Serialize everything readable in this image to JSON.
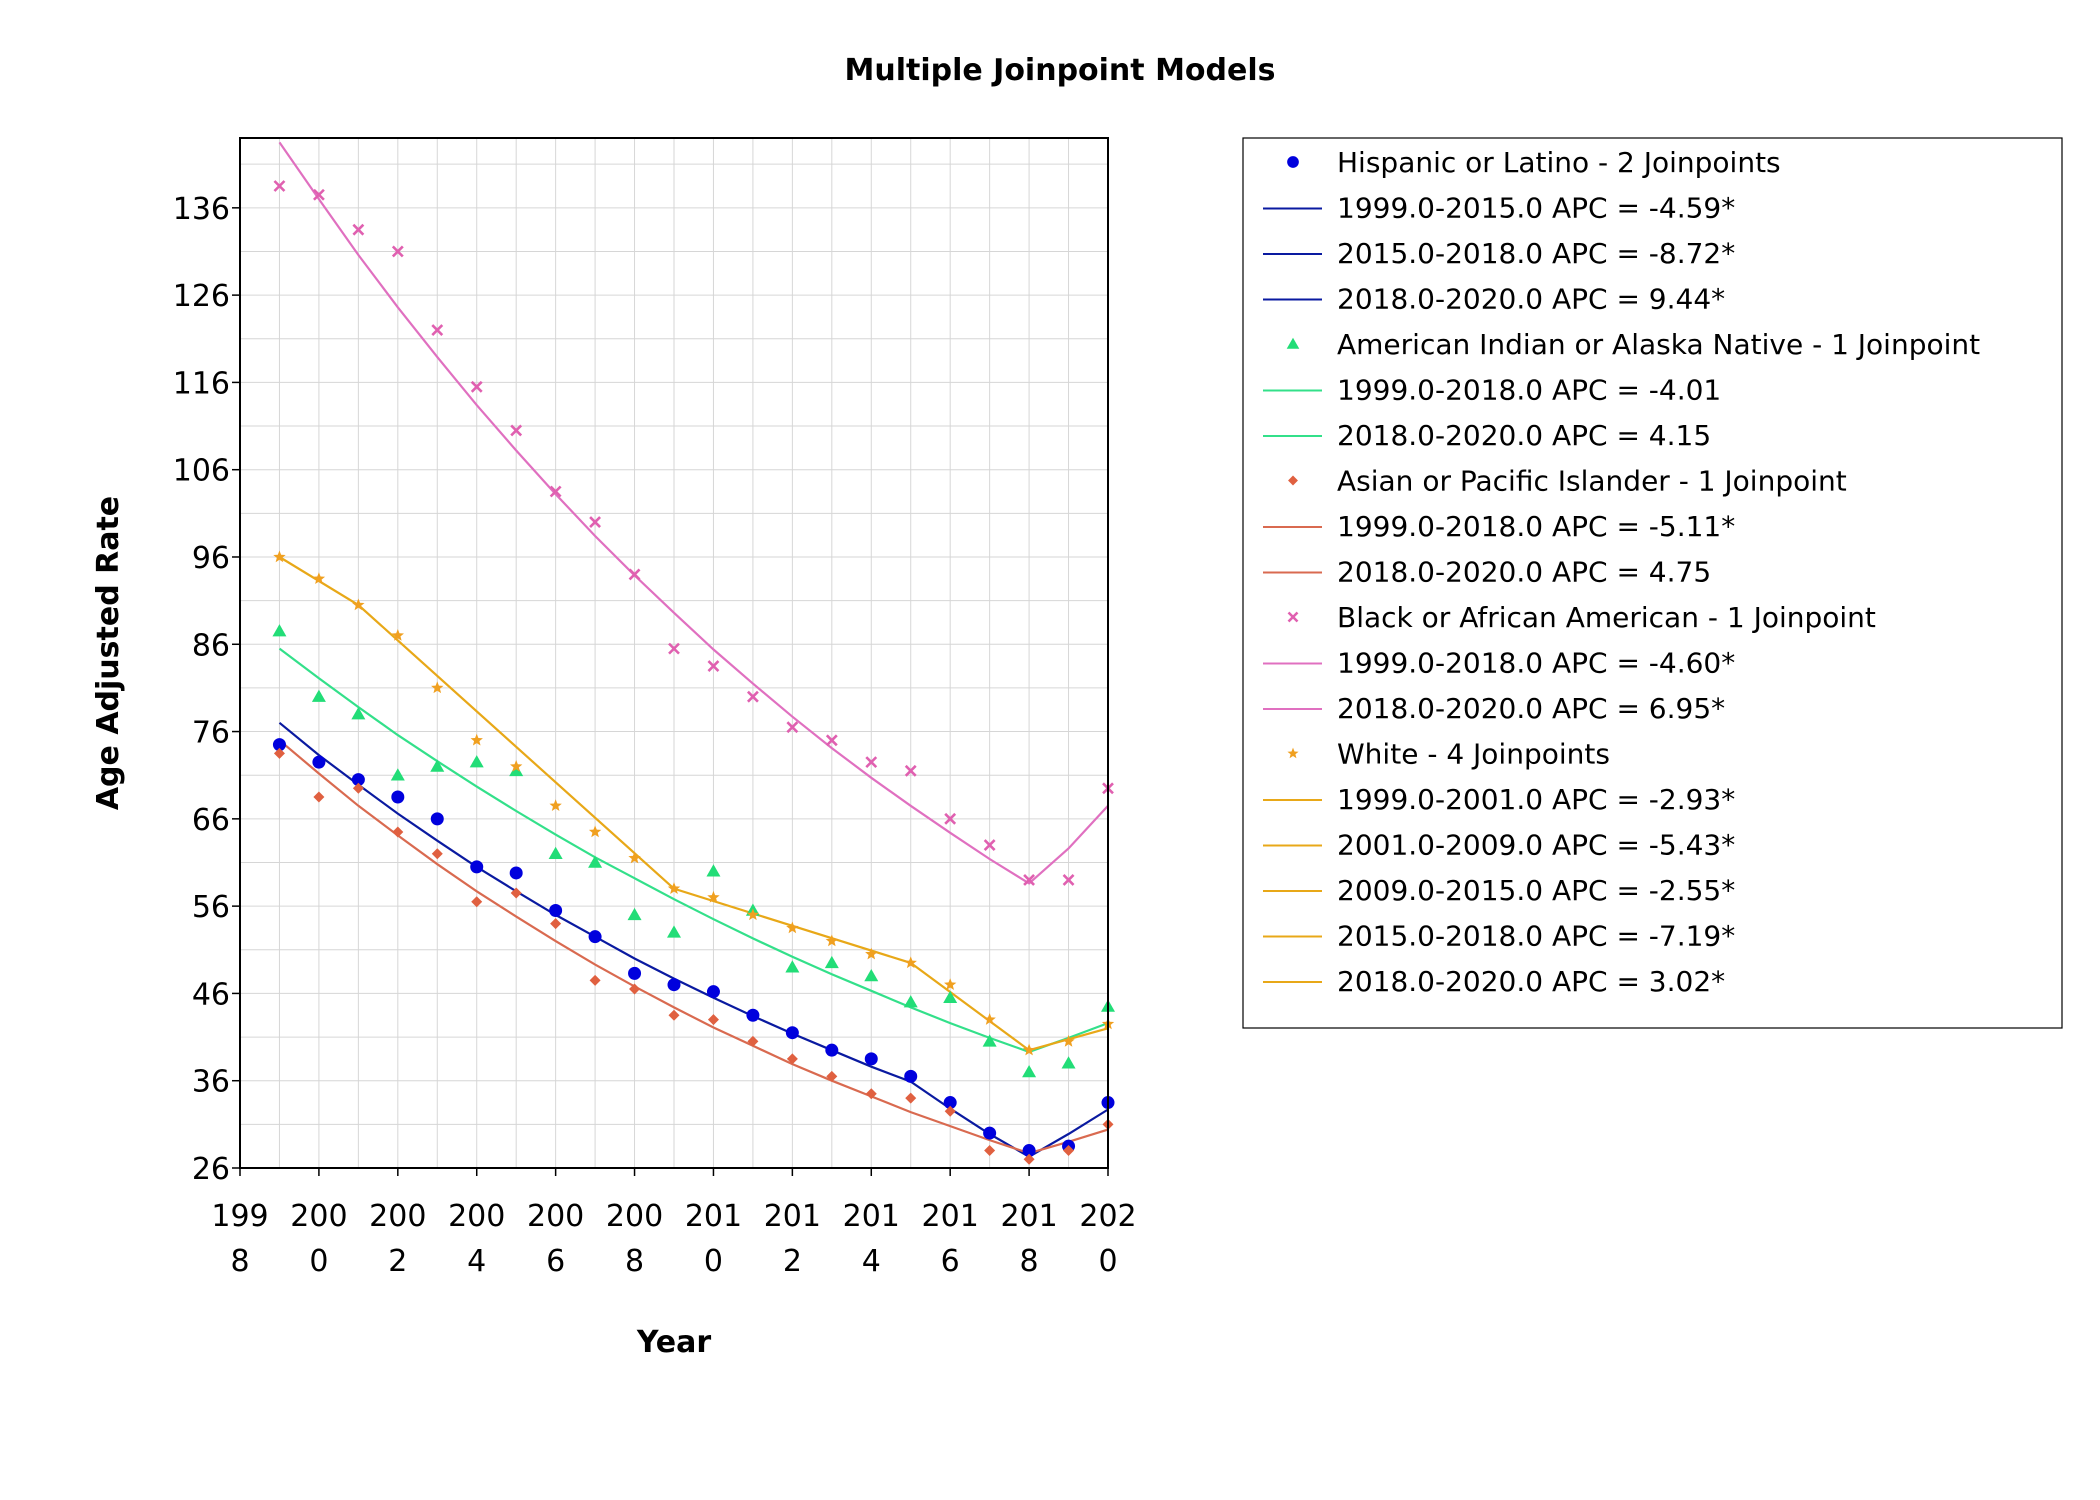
{
  "chart_data": {
    "type": "line",
    "title": "Multiple Joinpoint Models",
    "xlabel": "Year",
    "ylabel": "Age Adjusted Rate",
    "xlim": [
      1998,
      2020
    ],
    "ylim": [
      26,
      144
    ],
    "x_ticks": [
      1998,
      2000,
      2002,
      2004,
      2006,
      2008,
      2010,
      2012,
      2014,
      2016,
      2018,
      2020
    ],
    "x_tick_labels": [
      [
        "199",
        "8"
      ],
      [
        "200",
        "0"
      ],
      [
        "200",
        "2"
      ],
      [
        "200",
        "4"
      ],
      [
        "200",
        "6"
      ],
      [
        "200",
        "8"
      ],
      [
        "201",
        "0"
      ],
      [
        "201",
        "2"
      ],
      [
        "201",
        "4"
      ],
      [
        "201",
        "6"
      ],
      [
        "201",
        "8"
      ],
      [
        "202",
        "0"
      ]
    ],
    "y_ticks": [
      26,
      36,
      46,
      56,
      66,
      76,
      86,
      96,
      106,
      116,
      126,
      136
    ],
    "grid": true,
    "legend_position": "right",
    "x": [
      1999,
      2000,
      2001,
      2002,
      2003,
      2004,
      2005,
      2006,
      2007,
      2008,
      2009,
      2010,
      2011,
      2012,
      2013,
      2014,
      2015,
      2016,
      2017,
      2018,
      2019,
      2020
    ],
    "series": [
      {
        "name": "Hispanic or Latino - 2 Joinpoints",
        "color": "#0000dd",
        "line_color": "#0a1aa0",
        "marker": "circle",
        "observed": [
          74.5,
          72.5,
          70.5,
          68.5,
          66,
          60.5,
          59.8,
          55.5,
          52.5,
          48.3,
          47,
          46.2,
          43.5,
          41.5,
          39.5,
          38.5,
          36.5,
          33.5,
          30,
          28,
          28.5,
          33.5
        ],
        "fit_x": [
          1999,
          2000,
          2001,
          2002,
          2003,
          2004,
          2005,
          2006,
          2007,
          2008,
          2009,
          2010,
          2011,
          2012,
          2013,
          2014,
          2015,
          2016,
          2017,
          2018,
          2019,
          2020
        ],
        "fit_y": [
          77,
          73.3,
          69.9,
          66.6,
          63.5,
          60.5,
          57.7,
          55,
          52.5,
          50,
          47.7,
          45.5,
          43.4,
          41.4,
          39.5,
          37.6,
          35.9,
          32.8,
          29.9,
          27.3,
          29.9,
          32.7
        ],
        "legend_lines": [
          "1999.0-2015.0 APC  =  -4.59*",
          "2015.0-2018.0 APC  =  -8.72*",
          "2018.0-2020.0 APC  =  9.44*"
        ]
      },
      {
        "name": "American Indian or Alaska Native - 1 Joinpoint",
        "color": "#22dd77",
        "line_color": "#33e08a",
        "marker": "triangle",
        "observed": [
          87.5,
          80,
          78,
          71,
          72,
          72.5,
          71.5,
          62,
          61,
          55,
          53,
          60,
          55.5,
          49,
          49.5,
          48,
          45,
          45.5,
          40.5,
          37,
          38,
          44.5
        ],
        "fit_x": [
          1999,
          2000,
          2001,
          2002,
          2003,
          2004,
          2005,
          2006,
          2007,
          2008,
          2009,
          2010,
          2011,
          2012,
          2013,
          2014,
          2015,
          2016,
          2017,
          2018,
          2019,
          2020
        ],
        "fit_y": [
          85.5,
          82.1,
          78.8,
          75.6,
          72.6,
          69.7,
          66.9,
          64.2,
          61.6,
          59.2,
          56.8,
          54.5,
          52.3,
          50.2,
          48.2,
          46.3,
          44.4,
          42.6,
          40.9,
          39.3,
          40.9,
          42.6
        ],
        "legend_lines": [
          "1999.0-2018.0 APC  =  -4.01",
          "2018.0-2020.0 APC  =  4.15"
        ]
      },
      {
        "name": "Asian or Pacific Islander - 1 Joinpoint",
        "color": "#e06040",
        "line_color": "#d96a50",
        "marker": "diamond",
        "observed": [
          73.5,
          68.5,
          69.5,
          64.5,
          62,
          56.5,
          57.5,
          54,
          47.5,
          46.5,
          43.5,
          43,
          40.5,
          38.5,
          36.5,
          34.5,
          34,
          32.5,
          28,
          27,
          28,
          31
        ],
        "fit_x": [
          1999,
          2000,
          2001,
          2002,
          2003,
          2004,
          2005,
          2006,
          2007,
          2008,
          2009,
          2010,
          2011,
          2012,
          2013,
          2014,
          2015,
          2016,
          2017,
          2018,
          2019,
          2020
        ],
        "fit_y": [
          75,
          71.2,
          67.5,
          64.1,
          60.8,
          57.7,
          54.8,
          52,
          49.3,
          46.8,
          44.4,
          42.1,
          40,
          37.9,
          36,
          34.2,
          32.4,
          30.8,
          29.2,
          27.7,
          29,
          30.4
        ],
        "legend_lines": [
          "1999.0-2018.0 APC  =  -5.11*",
          "2018.0-2020.0 APC  =  4.75"
        ]
      },
      {
        "name": "Black or African American - 1 Joinpoint",
        "color": "#e060b0",
        "line_color": "#e070c0",
        "marker": "x",
        "observed": [
          138.5,
          137.5,
          133.5,
          131,
          122,
          115.5,
          110.5,
          103.5,
          100,
          94,
          85.5,
          83.5,
          80,
          76.5,
          75,
          72.5,
          71.5,
          66,
          63,
          59,
          59,
          69.5
        ],
        "fit_x": [
          1999,
          2000,
          2001,
          2002,
          2003,
          2004,
          2005,
          2006,
          2007,
          2008,
          2009,
          2010,
          2011,
          2012,
          2013,
          2014,
          2015,
          2016,
          2017,
          2018,
          2019,
          2020
        ],
        "fit_y": [
          143.5,
          137,
          130.6,
          124.6,
          118.9,
          113.4,
          108.2,
          103.2,
          98.4,
          93.9,
          89.6,
          85.4,
          81.5,
          77.7,
          74.1,
          70.7,
          67.5,
          64.4,
          61.4,
          58.6,
          62.6,
          67.5
        ],
        "legend_lines": [
          "1999.0-2018.0 APC  =  -4.60*",
          "2018.0-2020.0 APC  =  6.95*"
        ]
      },
      {
        "name": "White - 4 Joinpoints",
        "color": "#f0a020",
        "line_color": "#e8a818",
        "marker": "star",
        "observed": [
          96,
          93.5,
          90.5,
          87,
          81,
          75,
          72,
          67.5,
          64.5,
          61.5,
          58,
          57,
          55,
          53.5,
          52,
          50.5,
          49.5,
          47,
          43,
          39.5,
          40.5,
          42.5
        ],
        "fit_x": [
          1999,
          2001,
          2009,
          2015,
          2018,
          2020
        ],
        "fit_y": [
          96,
          90.5,
          58,
          49.5,
          39.5,
          42
        ],
        "legend_lines": [
          "1999.0-2001.0 APC  =  -2.93*",
          "2001.0-2009.0 APC  =  -5.43*",
          "2009.0-2015.0 APC  =  -2.55*",
          "2015.0-2018.0 APC  =  -7.19*",
          "2018.0-2020.0 APC  =  3.02*"
        ]
      }
    ]
  }
}
